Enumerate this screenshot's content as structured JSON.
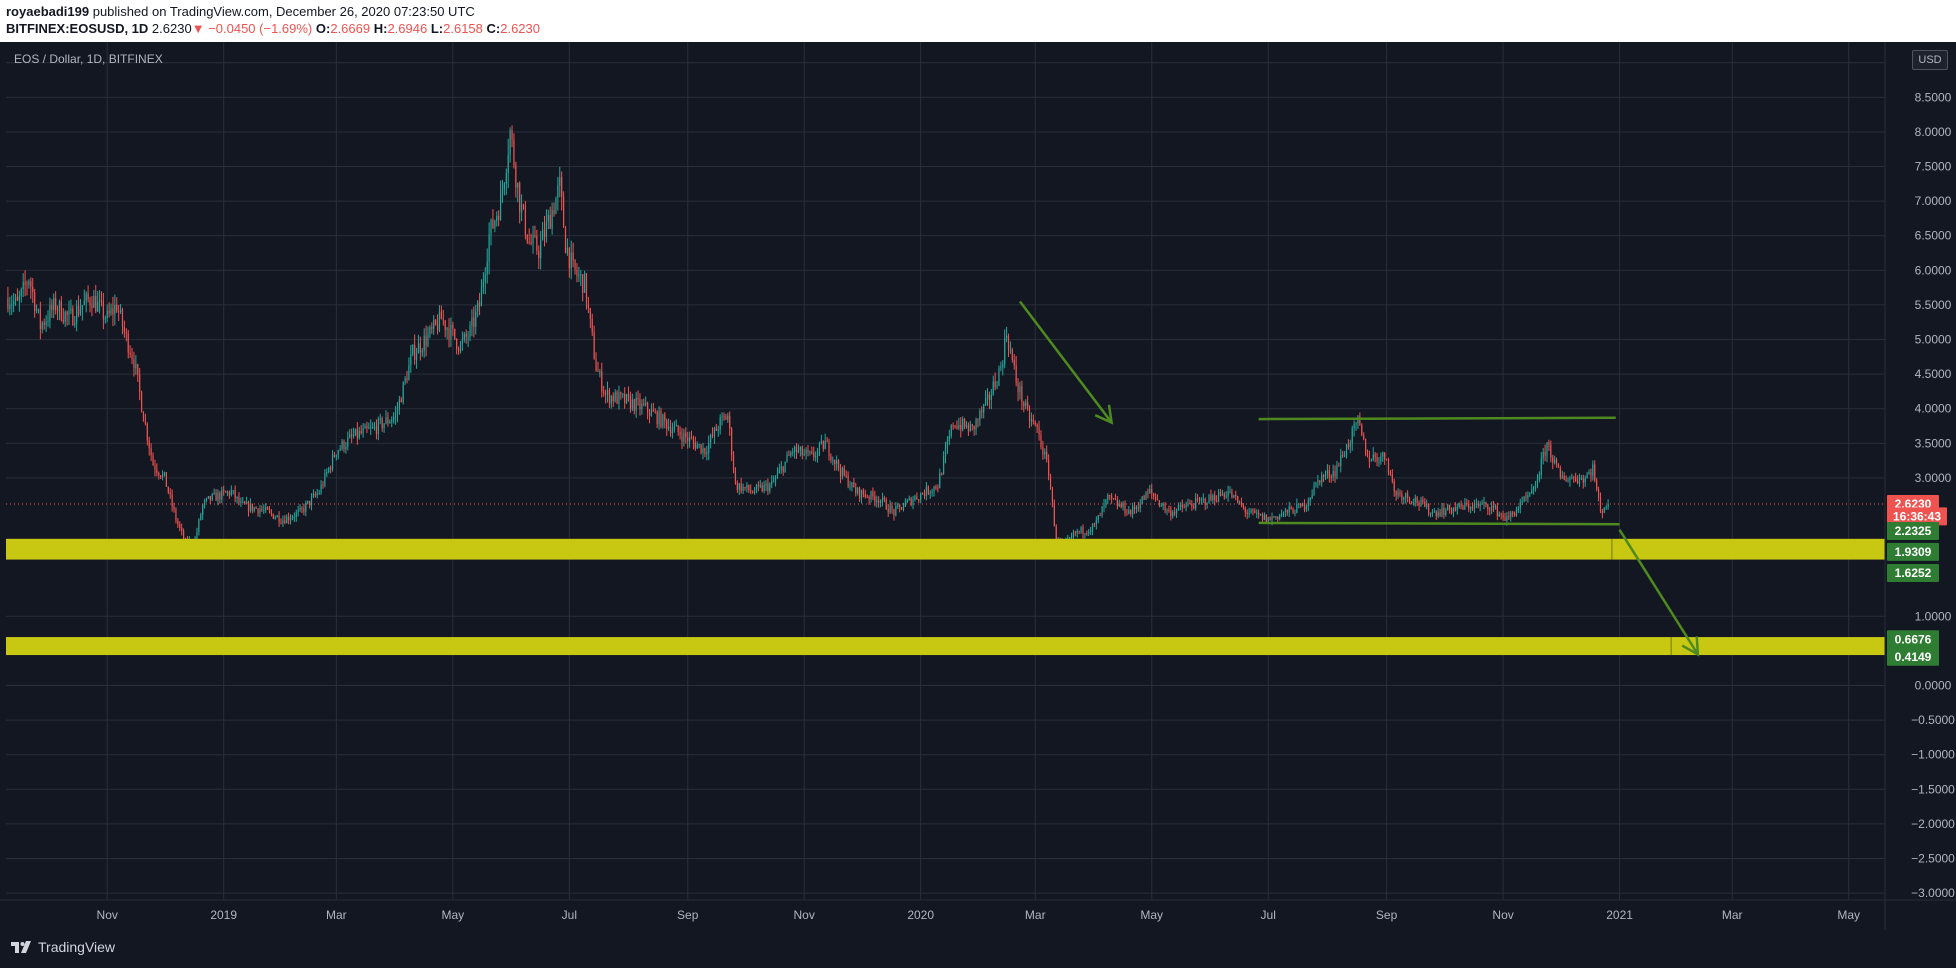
{
  "header": {
    "author": "royaebadi199",
    "published_text": " published on TradingView.com, December 26, 2020 07:23:50 UTC",
    "symbol": "BITFINEX:EOSUSD, 1D",
    "last": "2.6230",
    "change_arrow": "▼",
    "change": "−0.0450 (−1.69%)",
    "o_label": "O:",
    "o_value": "2.6669",
    "h_label": "H:",
    "h_value": "2.6946",
    "l_label": "L:",
    "l_value": "2.6158",
    "c_label": "C:",
    "c_value": "2.6230"
  },
  "legend": "EOS / Dollar, 1D, BITFINEX",
  "currency_button": "USD",
  "footer": {
    "brand": "TradingView"
  },
  "colors": {
    "background": "#131722",
    "grid": "#2a2e39",
    "up": "#26a69a",
    "down": "#ef5350",
    "zone": "#c8c813",
    "zone_label": "#2e7d32",
    "annotation": "#4e8a1f"
  },
  "chart_data": {
    "type": "candlestick",
    "ylim": [
      -3.1,
      9.3
    ],
    "yticks": [
      "9",
      "8.5000",
      "8.0000",
      "7.5000",
      "7.0000",
      "6.5000",
      "6.0000",
      "5.5000",
      "5.0000",
      "4.5000",
      "4.0000",
      "3.5000",
      "3.0000",
      "1.0000",
      "0.0000",
      "−0.5000",
      "−1.0000",
      "−1.5000",
      "−2.0000",
      "−2.5000",
      "−3.0000"
    ],
    "ytick_values": [
      9,
      8.5,
      8,
      7.5,
      7,
      6.5,
      6,
      5.5,
      5,
      4.5,
      4,
      3.5,
      3,
      1,
      0,
      -0.5,
      -1,
      -1.5,
      -2,
      -2.5,
      -3
    ],
    "xticks": [
      "Nov",
      "2019",
      "Mar",
      "May",
      "Jul",
      "Sep",
      "Nov",
      "2020",
      "Mar",
      "May",
      "Jul",
      "Sep",
      "Nov",
      "2021",
      "Mar",
      "May"
    ],
    "xtick_dates": [
      "2018-11-01",
      "2019-01-01",
      "2019-03-01",
      "2019-05-01",
      "2019-07-01",
      "2019-09-01",
      "2019-11-01",
      "2020-01-01",
      "2020-03-01",
      "2020-05-01",
      "2020-07-01",
      "2020-09-01",
      "2020-11-01",
      "2021-01-01",
      "2021-03-01",
      "2021-05-01"
    ],
    "xrange": [
      "2018-09-09",
      "2021-05-20"
    ],
    "last_date": "2020-12-26",
    "last_price": 2.623,
    "countdown": "16:36:43",
    "price_path": [
      [
        "2018-09-10",
        5.6
      ],
      [
        "2018-09-15",
        5.5
      ],
      [
        "2018-09-21",
        5.9
      ],
      [
        "2018-09-27",
        5.2
      ],
      [
        "2018-10-05",
        5.5
      ],
      [
        "2018-10-12",
        5.3
      ],
      [
        "2018-10-19",
        5.5
      ],
      [
        "2018-10-24",
        5.6
      ],
      [
        "2018-11-01",
        5.3
      ],
      [
        "2018-11-06",
        5.5
      ],
      [
        "2018-11-10",
        5.1
      ],
      [
        "2018-11-15",
        4.7
      ],
      [
        "2018-11-20",
        3.9
      ],
      [
        "2018-11-25",
        3.2
      ],
      [
        "2018-12-01",
        3.0
      ],
      [
        "2018-12-07",
        2.4
      ],
      [
        "2018-12-12",
        2.05
      ],
      [
        "2018-12-17",
        2.1
      ],
      [
        "2018-12-21",
        2.6
      ],
      [
        "2018-12-25",
        2.7
      ],
      [
        "2019-01-05",
        2.8
      ],
      [
        "2019-01-10",
        2.6
      ],
      [
        "2019-01-20",
        2.55
      ],
      [
        "2019-02-01",
        2.4
      ],
      [
        "2019-02-10",
        2.5
      ],
      [
        "2019-02-20",
        2.8
      ],
      [
        "2019-03-01",
        3.4
      ],
      [
        "2019-03-10",
        3.6
      ],
      [
        "2019-03-20",
        3.7
      ],
      [
        "2019-04-01",
        3.9
      ],
      [
        "2019-04-10",
        4.8
      ],
      [
        "2019-04-20",
        5.1
      ],
      [
        "2019-04-25",
        5.3
      ],
      [
        "2019-05-05",
        4.9
      ],
      [
        "2019-05-10",
        5.1
      ],
      [
        "2019-05-15",
        5.5
      ],
      [
        "2019-05-20",
        6.5
      ],
      [
        "2019-05-26",
        7.0
      ],
      [
        "2019-05-31",
        8.0
      ],
      [
        "2019-06-05",
        7.0
      ],
      [
        "2019-06-10",
        6.4
      ],
      [
        "2019-06-15",
        6.3
      ],
      [
        "2019-06-20",
        6.7
      ],
      [
        "2019-06-26",
        7.2
      ],
      [
        "2019-06-29",
        6.4
      ],
      [
        "2019-07-03",
        6.0
      ],
      [
        "2019-07-09",
        5.8
      ],
      [
        "2019-07-15",
        4.6
      ],
      [
        "2019-07-20",
        4.2
      ],
      [
        "2019-08-01",
        4.1
      ],
      [
        "2019-08-10",
        4.0
      ],
      [
        "2019-08-20",
        3.8
      ],
      [
        "2019-08-30",
        3.6
      ],
      [
        "2019-09-10",
        3.4
      ],
      [
        "2019-09-18",
        3.8
      ],
      [
        "2019-09-22",
        3.9
      ],
      [
        "2019-09-26",
        2.9
      ],
      [
        "2019-10-05",
        2.8
      ],
      [
        "2019-10-15",
        2.9
      ],
      [
        "2019-10-26",
        3.4
      ],
      [
        "2019-11-05",
        3.3
      ],
      [
        "2019-11-12",
        3.5
      ],
      [
        "2019-11-20",
        3.1
      ],
      [
        "2019-11-28",
        2.8
      ],
      [
        "2019-12-10",
        2.7
      ],
      [
        "2019-12-18",
        2.5
      ],
      [
        "2019-12-28",
        2.7
      ],
      [
        "2020-01-10",
        2.9
      ],
      [
        "2020-01-18",
        3.8
      ],
      [
        "2020-01-28",
        3.7
      ],
      [
        "2020-02-05",
        4.1
      ],
      [
        "2020-02-12",
        4.6
      ],
      [
        "2020-02-15",
        5.1
      ],
      [
        "2020-02-20",
        4.4
      ],
      [
        "2020-02-26",
        3.9
      ],
      [
        "2020-03-02",
        3.7
      ],
      [
        "2020-03-08",
        3.1
      ],
      [
        "2020-03-12",
        2.1
      ],
      [
        "2020-03-16",
        2.0
      ],
      [
        "2020-03-22",
        2.2
      ],
      [
        "2020-04-01",
        2.3
      ],
      [
        "2020-04-08",
        2.7
      ],
      [
        "2020-04-20",
        2.5
      ],
      [
        "2020-04-30",
        2.8
      ],
      [
        "2020-05-10",
        2.5
      ],
      [
        "2020-05-20",
        2.6
      ],
      [
        "2020-06-01",
        2.7
      ],
      [
        "2020-06-10",
        2.8
      ],
      [
        "2020-06-20",
        2.5
      ],
      [
        "2020-07-01",
        2.4
      ],
      [
        "2020-07-10",
        2.5
      ],
      [
        "2020-07-20",
        2.6
      ],
      [
        "2020-07-28",
        3.0
      ],
      [
        "2020-08-05",
        3.1
      ],
      [
        "2020-08-12",
        3.5
      ],
      [
        "2020-08-17",
        3.8
      ],
      [
        "2020-08-22",
        3.3
      ],
      [
        "2020-09-01",
        3.3
      ],
      [
        "2020-09-05",
        2.8
      ],
      [
        "2020-09-15",
        2.7
      ],
      [
        "2020-09-25",
        2.5
      ],
      [
        "2020-10-05",
        2.55
      ],
      [
        "2020-10-15",
        2.6
      ],
      [
        "2020-10-25",
        2.6
      ],
      [
        "2020-11-03",
        2.4
      ],
      [
        "2020-11-10",
        2.6
      ],
      [
        "2020-11-17",
        2.8
      ],
      [
        "2020-11-24",
        3.5
      ],
      [
        "2020-12-01",
        3.0
      ],
      [
        "2020-12-08",
        3.0
      ],
      [
        "2020-12-14",
        3.0
      ],
      [
        "2020-12-18",
        3.15
      ],
      [
        "2020-12-22",
        2.5
      ],
      [
        "2020-12-24",
        2.6
      ],
      [
        "2020-12-26",
        2.623
      ]
    ],
    "price_labels": [
      {
        "text": "2.6230",
        "value": 2.623,
        "kind": "last"
      },
      {
        "text": "16:36:43",
        "value": 2.445,
        "kind": "countdown"
      },
      {
        "text": "2.2325",
        "value": 2.2325,
        "kind": "zone"
      },
      {
        "text": "1.9309",
        "value": 1.9309,
        "kind": "zone"
      },
      {
        "text": "1.6252",
        "value": 1.6252,
        "kind": "zone"
      },
      {
        "text": "0.6676",
        "value": 0.6676,
        "kind": "zone"
      },
      {
        "text": "0.4149",
        "value": 0.4149,
        "kind": "zone"
      }
    ],
    "drawings": {
      "zones": [
        {
          "from": "2018-09-09",
          "to": "2021-05-20",
          "top": 2.12,
          "bottom": 1.82
        },
        {
          "from": "2018-09-09",
          "to": "2021-05-20",
          "top": 0.7,
          "bottom": 0.44
        }
      ],
      "trend_lines": [
        {
          "x1": "2020-06-26",
          "y1": 3.85,
          "x2": "2020-12-30",
          "y2": 3.87
        },
        {
          "x1": "2020-06-26",
          "y1": 2.35,
          "x2": "2021-01-01",
          "y2": 2.33
        }
      ],
      "arrows": [
        {
          "x1": "2020-02-22",
          "y1": 5.55,
          "x2": "2020-04-10",
          "y2": 3.8
        },
        {
          "x1": "2021-01-01",
          "y1": 2.25,
          "x2": "2021-02-11",
          "y2": 0.45
        }
      ],
      "vertical_ticks": [
        {
          "date": "2020-12-28",
          "top": 2.12,
          "bottom": 1.82
        },
        {
          "date": "2021-01-28",
          "top": 0.7,
          "bottom": 0.44
        }
      ]
    }
  }
}
